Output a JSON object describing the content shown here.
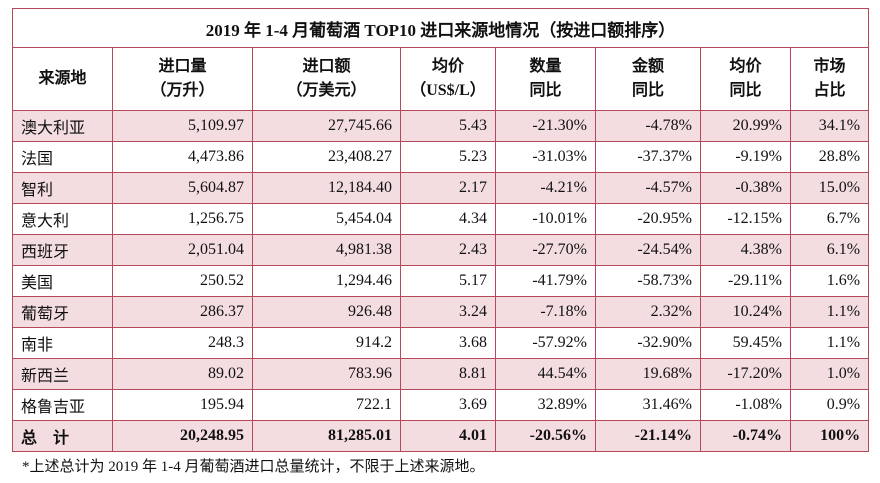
{
  "table": {
    "title": "2019 年 1-4 月葡萄酒 TOP10 进口来源地情况（按进口额排序）",
    "header": [
      [
        "来源地"
      ],
      [
        "进口量",
        "（万升）"
      ],
      [
        "进口额",
        "（万美元）"
      ],
      [
        "均价",
        "（US$/L）"
      ],
      [
        "数量",
        "同比"
      ],
      [
        "金额",
        "同比"
      ],
      [
        "均价",
        "同比"
      ],
      [
        "市场",
        "占比"
      ]
    ],
    "rows": [
      [
        "澳大利亚",
        "5,109.97",
        "27,745.66",
        "5.43",
        "-21.30%",
        "-4.78%",
        "20.99%",
        "34.1%"
      ],
      [
        "法国",
        "4,473.86",
        "23,408.27",
        "5.23",
        "-31.03%",
        "-37.37%",
        "-9.19%",
        "28.8%"
      ],
      [
        "智利",
        "5,604.87",
        "12,184.40",
        "2.17",
        "-4.21%",
        "-4.57%",
        "-0.38%",
        "15.0%"
      ],
      [
        "意大利",
        "1,256.75",
        "5,454.04",
        "4.34",
        "-10.01%",
        "-20.95%",
        "-12.15%",
        "6.7%"
      ],
      [
        "西班牙",
        "2,051.04",
        "4,981.38",
        "2.43",
        "-27.70%",
        "-24.54%",
        "4.38%",
        "6.1%"
      ],
      [
        "美国",
        "250.52",
        "1,294.46",
        "5.17",
        "-41.79%",
        "-58.73%",
        "-29.11%",
        "1.6%"
      ],
      [
        "葡萄牙",
        "286.37",
        "926.48",
        "3.24",
        "-7.18%",
        "2.32%",
        "10.24%",
        "1.1%"
      ],
      [
        "南非",
        "248.3",
        "914.2",
        "3.68",
        "-57.92%",
        "-32.90%",
        "59.45%",
        "1.1%"
      ],
      [
        "新西兰",
        "89.02",
        "783.96",
        "8.81",
        "44.54%",
        "19.68%",
        "-17.20%",
        "1.0%"
      ],
      [
        "格鲁吉亚",
        "195.94",
        "722.1",
        "3.69",
        "32.89%",
        "31.46%",
        "-1.08%",
        "0.9%"
      ]
    ],
    "total": [
      "总　计",
      "20,248.95",
      "81,285.01",
      "4.01",
      "-20.56%",
      "-21.14%",
      "-0.74%",
      "100%"
    ]
  },
  "footnote": "*上述总计为 2019 年 1-4 月葡萄酒进口总量统计，不限于上述来源地。"
}
